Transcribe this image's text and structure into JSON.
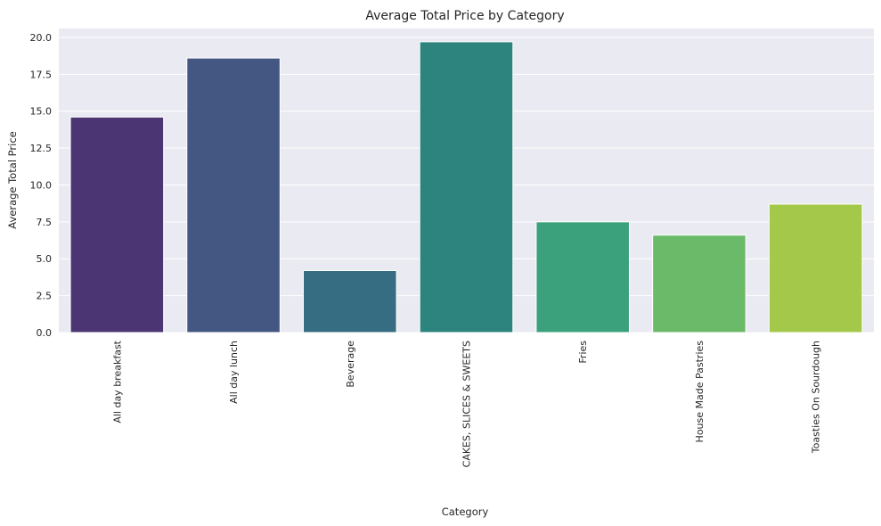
{
  "chart_data": {
    "type": "bar",
    "title": "Average Total Price by Category",
    "xlabel": "Category",
    "ylabel": "Average Total Price",
    "categories": [
      "All day breakfast",
      "All day lunch",
      "Beverage",
      "CAKES, SLICES & SWEETS",
      "Fries",
      "House Made Pastries",
      "Toasties On Sourdough"
    ],
    "values": [
      14.6,
      18.6,
      4.2,
      19.7,
      7.5,
      6.6,
      8.7
    ],
    "colors": [
      "#4b3573",
      "#445783",
      "#376d83",
      "#2d847e",
      "#3aa17c",
      "#6bba6a",
      "#a3c84a"
    ],
    "yticks": [
      "0.0",
      "2.5",
      "5.0",
      "7.5",
      "10.0",
      "12.5",
      "15.0",
      "17.5",
      "20.0"
    ],
    "ylim": [
      0,
      20.6
    ],
    "grid": true,
    "background": "#eaeaf2"
  }
}
